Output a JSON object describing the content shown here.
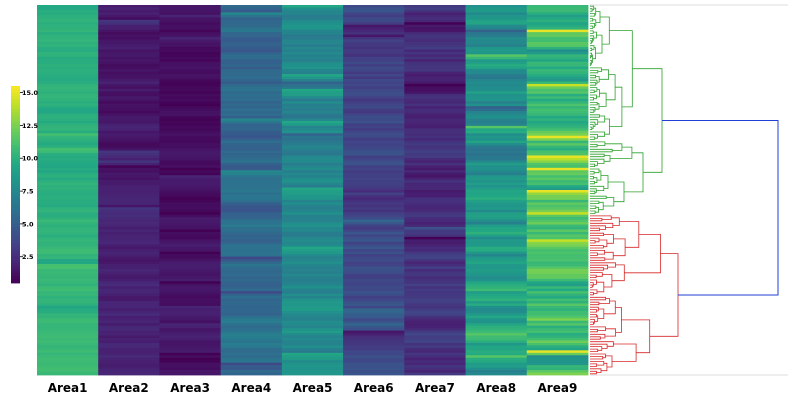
{
  "chart_data": {
    "type": "heatmap",
    "title": "",
    "xlabel": "",
    "ylabel": "",
    "columns": [
      "Area1",
      "Area2",
      "Area3",
      "Area4",
      "Area5",
      "Area6",
      "Area7",
      "Area8",
      "Area9"
    ],
    "row_labels_shown": false,
    "column_base_values": [
      10.0,
      1.6,
      1.1,
      5.6,
      7.3,
      3.4,
      2.4,
      8.2,
      10.6
    ],
    "column_value_ranges": [
      [
        9.3,
        11.3
      ],
      [
        0.6,
        3.0
      ],
      [
        0.5,
        2.3
      ],
      [
        3.8,
        7.5
      ],
      [
        5.3,
        9.5
      ],
      [
        1.4,
        5.4
      ],
      [
        0.5,
        4.3
      ],
      [
        5.2,
        11.8
      ],
      [
        7.8,
        15.0
      ]
    ],
    "colorbar": {
      "colormap": "viridis",
      "range": [
        0.5,
        15.5
      ],
      "ticks": [
        "2.5",
        "5.0",
        "7.5",
        "10.0",
        "12.5",
        "15.0"
      ],
      "tick_values": [
        2.5,
        5.0,
        7.5,
        10.0,
        12.5,
        15.0
      ]
    },
    "dendrogram": {
      "orientation": "right",
      "side": "right",
      "top_level_clusters": 2,
      "cluster_colors": [
        "#2ca02c",
        "#d62728"
      ],
      "link_color": "#1f3fd6",
      "cluster_row_split_fraction": 0.565
    },
    "grid": false
  }
}
